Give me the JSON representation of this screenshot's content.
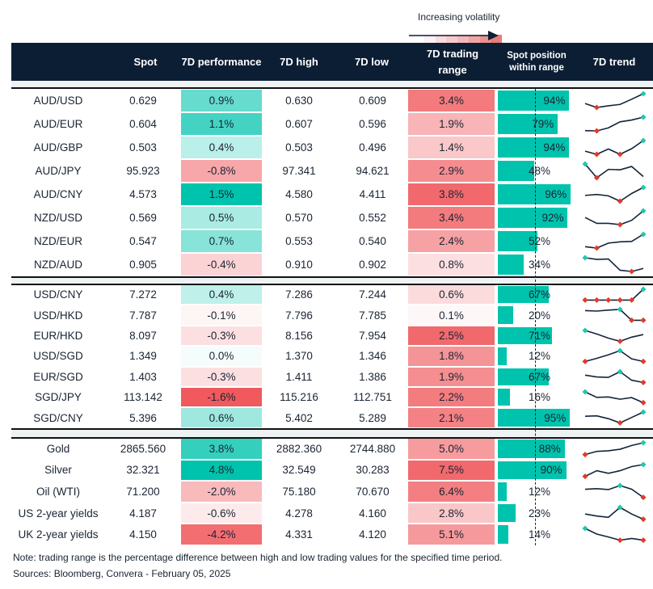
{
  "legend": {
    "label": "Increasing volatility"
  },
  "columns": [
    "",
    "Spot",
    "7D performance",
    "7D high",
    "7D low",
    "7D trading range",
    "Spot position within range",
    "7D trend"
  ],
  "colors": {
    "header": "#0c1e34",
    "teal": "#00c3ad",
    "red": "#f0595d",
    "line": "#13243a",
    "min_marker": "#e03a2a",
    "max_marker": "#1fc8b0"
  },
  "chart_data": {
    "type": "table",
    "sections": [
      {
        "rows": [
          {
            "pair": "AUD/USD",
            "spot": "0.629",
            "perf": "0.9%",
            "high": "0.630",
            "low": "0.609",
            "range": "3.4%",
            "position": "94%",
            "trend": [
              0.29,
              0,
              0.12,
              0.22,
              0.6,
              1
            ]
          },
          {
            "pair": "AUD/EUR",
            "spot": "0.604",
            "perf": "1.1%",
            "high": "0.607",
            "low": "0.596",
            "range": "1.9%",
            "position": "79%",
            "trend": [
              0.02,
              0,
              0.22,
              0.66,
              0.79,
              1
            ]
          },
          {
            "pair": "AUD/GBP",
            "spot": "0.503",
            "perf": "0.4%",
            "high": "0.503",
            "low": "0.496",
            "range": "1.4%",
            "position": "94%",
            "trend": [
              0.23,
              0,
              0.39,
              0,
              0.41,
              1
            ]
          },
          {
            "pair": "AUD/JPY",
            "spot": "95.923",
            "perf": "-0.8%",
            "high": "97.341",
            "low": "94.621",
            "range": "2.9%",
            "position": "48%",
            "trend": [
              1,
              0,
              0.61,
              0.58,
              0.82,
              0.09
            ]
          },
          {
            "pair": "AUD/CNY",
            "spot": "4.573",
            "perf": "1.5%",
            "high": "4.580",
            "low": "4.411",
            "range": "3.8%",
            "position": "96%",
            "trend": [
              0.42,
              0.49,
              0.39,
              0,
              0.56,
              1
            ]
          },
          {
            "pair": "NZD/USD",
            "spot": "0.569",
            "perf": "0.5%",
            "high": "0.570",
            "low": "0.552",
            "range": "3.4%",
            "position": "92%",
            "trend": [
              0.52,
              0.09,
              0.09,
              0,
              0.31,
              1
            ]
          },
          {
            "pair": "NZD/EUR",
            "spot": "0.547",
            "perf": "0.7%",
            "high": "0.553",
            "low": "0.540",
            "range": "2.4%",
            "position": "52%",
            "trend": [
              0.1,
              0,
              0.36,
              0.45,
              0.48,
              1
            ]
          },
          {
            "pair": "NZD/AUD",
            "spot": "0.905",
            "perf": "-0.4%",
            "high": "0.910",
            "low": "0.902",
            "range": "0.8%",
            "position": "34%",
            "trend": [
              1,
              0.88,
              0.91,
              0.09,
              0,
              0.22
            ]
          }
        ]
      },
      {
        "rows": [
          {
            "pair": "USD/CNY",
            "spot": "7.272",
            "perf": "0.4%",
            "high": "7.286",
            "low": "7.244",
            "range": "0.6%",
            "position": "67%",
            "trend": [
              0,
              0,
              0,
              0,
              0,
              1
            ]
          },
          {
            "pair": "USD/HKD",
            "spot": "7.787",
            "perf": "-0.1%",
            "high": "7.796",
            "low": "7.785",
            "range": "0.1%",
            "position": "20%",
            "trend": [
              0.89,
              0.85,
              0.94,
              1,
              0,
              0
            ]
          },
          {
            "pair": "EUR/HKD",
            "spot": "8.097",
            "perf": "-0.3%",
            "high": "8.156",
            "low": "7.954",
            "range": "2.5%",
            "position": "71%",
            "trend": [
              1,
              0.67,
              0.29,
              0,
              0.38,
              0.62
            ]
          },
          {
            "pair": "USD/SGD",
            "spot": "1.349",
            "perf": "0.0%",
            "high": "1.370",
            "low": "1.346",
            "range": "1.8%",
            "position": "12%",
            "trend": [
              0,
              0.29,
              0.62,
              1,
              0.24,
              0
            ]
          },
          {
            "pair": "EUR/SGD",
            "spot": "1.403",
            "perf": "-0.3%",
            "high": "1.411",
            "low": "1.386",
            "range": "1.9%",
            "position": "67%",
            "trend": [
              0.68,
              0.51,
              0.47,
              1,
              0.21,
              0
            ]
          },
          {
            "pair": "SGD/JPY",
            "spot": "113.142",
            "perf": "-1.6%",
            "high": "115.216",
            "low": "112.751",
            "range": "2.2%",
            "position": "16%",
            "trend": [
              1,
              0.49,
              0.53,
              0.32,
              0.47,
              0
            ]
          },
          {
            "pair": "SGD/CNY",
            "spot": "5.396",
            "perf": "0.6%",
            "high": "5.402",
            "low": "5.289",
            "range": "2.1%",
            "position": "95%",
            "trend": [
              0.61,
              0.65,
              0.39,
              0,
              0.5,
              1
            ]
          }
        ]
      },
      {
        "rows": [
          {
            "pair": "Gold",
            "spot": "2865.560",
            "perf": "3.8%",
            "high": "2882.360",
            "low": "2744.880",
            "range": "5.0%",
            "position": "88%",
            "trend": [
              0,
              0.27,
              0.32,
              0.45,
              0.77,
              1
            ]
          },
          {
            "pair": "Silver",
            "spot": "32.321",
            "perf": "4.8%",
            "high": "32.549",
            "low": "30.283",
            "range": "7.5%",
            "position": "90%",
            "trend": [
              0,
              0.48,
              0.26,
              0.48,
              0.83,
              1
            ]
          },
          {
            "pair": "Oil (WTI)",
            "spot": "71.200",
            "perf": "-2.0%",
            "high": "75.180",
            "low": "70.670",
            "range": "6.4%",
            "position": "12%",
            "trend": [
              0.69,
              0.74,
              0.66,
              1,
              0.69,
              0
            ]
          },
          {
            "pair": "US 2-year yields",
            "spot": "4.187",
            "perf": "-0.6%",
            "high": "4.278",
            "low": "4.160",
            "range": "2.8%",
            "position": "23%",
            "trend": [
              0.44,
              0.27,
              0.16,
              1,
              0.44,
              0
            ]
          },
          {
            "pair": "UK 2-year yields",
            "spot": "4.150",
            "perf": "-4.2%",
            "high": "4.331",
            "low": "4.120",
            "range": "5.1%",
            "position": "14%",
            "trend": [
              1,
              0.52,
              0.27,
              0,
              0.15,
              0
            ]
          }
        ]
      }
    ]
  },
  "footer": {
    "note": "Note: trading range is the percentage difference between high and low trading values for the specified time period.",
    "sources": "Sources: Bloomberg, Convera - February 05, 2025"
  }
}
